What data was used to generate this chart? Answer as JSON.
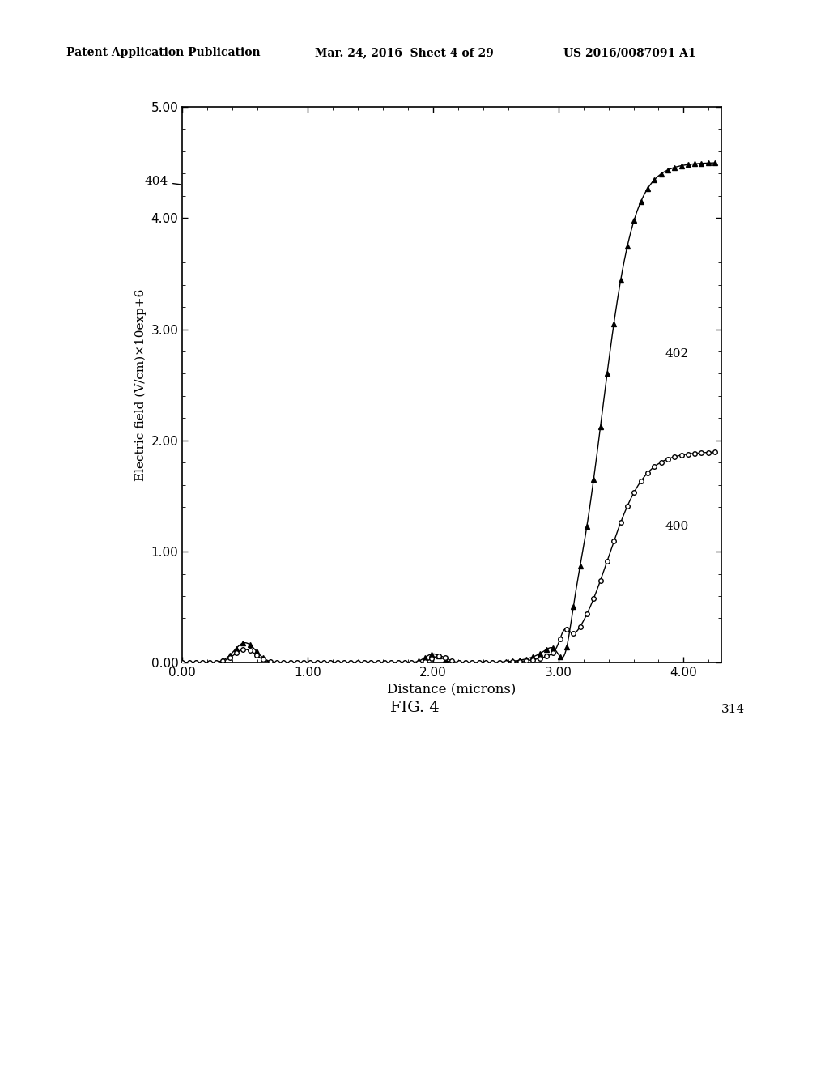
{
  "title": "FIG. 4",
  "xlabel": "Distance (microns)",
  "ylabel": "Electric field (V/cm)×10exp+6",
  "xlim": [
    0.0,
    4.3
  ],
  "ylim": [
    0.0,
    5.0
  ],
  "xticks": [
    0.0,
    1.0,
    2.0,
    3.0,
    4.0
  ],
  "xticklabels": [
    "0.00",
    "1.00",
    "2.00",
    "3.00",
    "4.00"
  ],
  "yticks": [
    0.0,
    1.0,
    2.0,
    3.0,
    4.0,
    5.0
  ],
  "yticklabels": [
    "0.00",
    "1.00",
    "2.00",
    "3.00",
    "4.00",
    "5.00"
  ],
  "label_402": "402",
  "label_400": "400",
  "label_404": "404",
  "label_314": "314",
  "bg_color": "#ffffff",
  "line_color": "#000000",
  "header_left": "Patent Application Publication",
  "header_mid": "Mar. 24, 2016  Sheet 4 of 29",
  "header_right": "US 2016/0087091 A1"
}
